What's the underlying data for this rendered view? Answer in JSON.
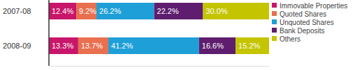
{
  "chart_data": {
    "type": "bar",
    "orientation": "horizontal",
    "stacked": true,
    "data_labels": true,
    "tick_labels": "y",
    "legend": "right",
    "categories": [
      "2007-08",
      "2008-09"
    ],
    "xlim": [
      0,
      100
    ],
    "series": [
      {
        "name": "Immovable Properties",
        "color": "#c8166b",
        "values": [
          12.4,
          13.3
        ],
        "value_labels": [
          "12.4%",
          "13.3%"
        ]
      },
      {
        "name": "Quoted Shares",
        "color": "#e8704f",
        "values": [
          9.2,
          13.7
        ],
        "value_labels": [
          "9.2%",
          "13.7%"
        ]
      },
      {
        "name": "Unquoted Shares",
        "color": "#1e9fd8",
        "values": [
          26.2,
          41.2
        ],
        "value_labels": [
          "26.2%",
          "41.2%"
        ]
      },
      {
        "name": "Bank Deposits",
        "color": "#5e1d6e",
        "values": [
          22.2,
          16.6
        ],
        "value_labels": [
          "22.2%",
          "16.6%"
        ]
      },
      {
        "name": "Others",
        "color": "#c4c400",
        "values": [
          30.0,
          15.2
        ],
        "value_labels": [
          "30.0%",
          "15.2%"
        ]
      }
    ]
  }
}
